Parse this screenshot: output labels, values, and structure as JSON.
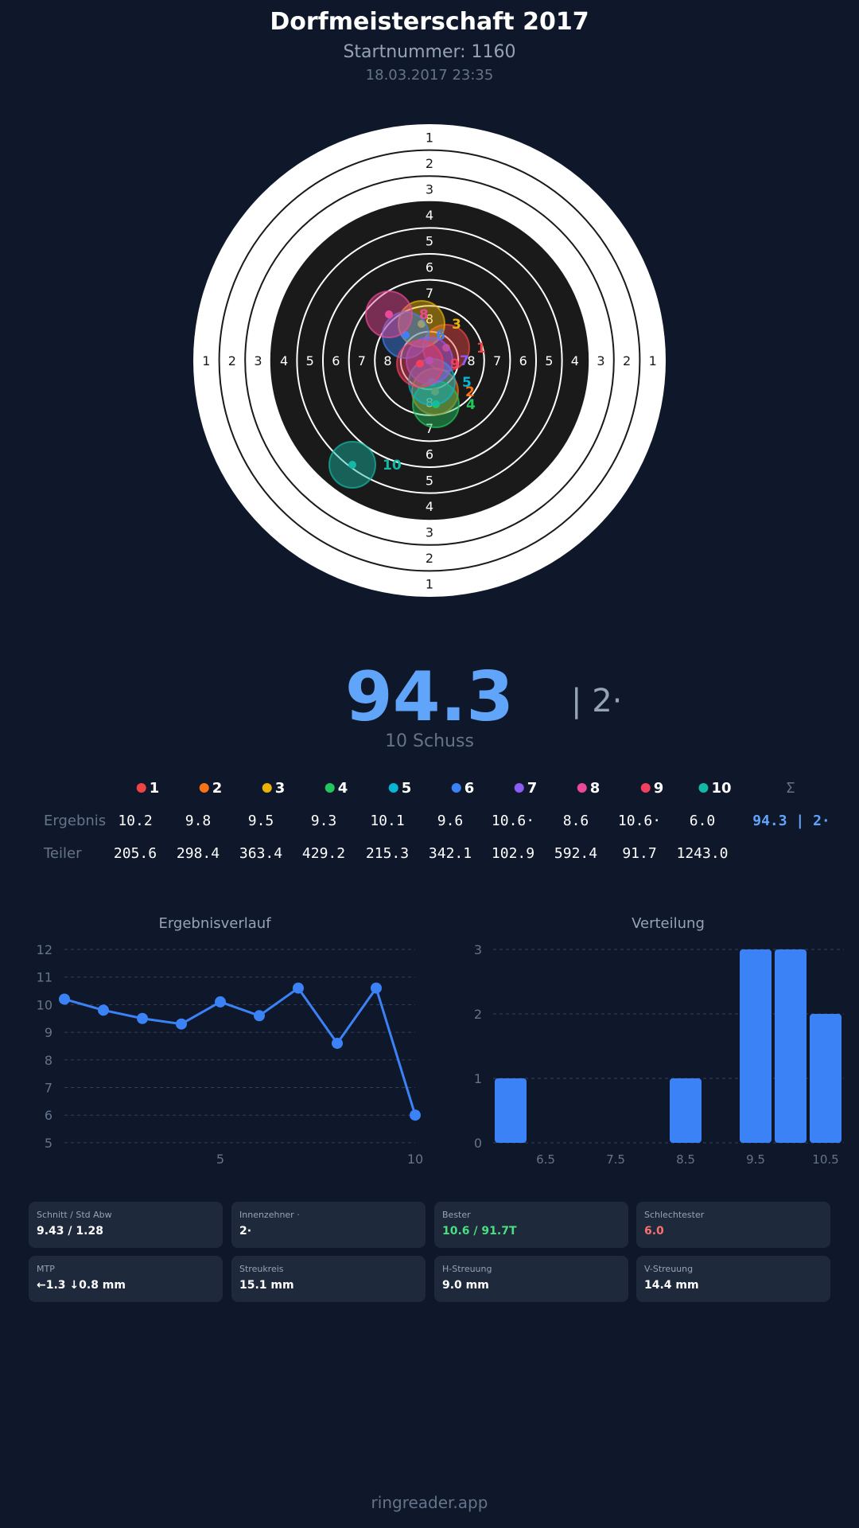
{
  "header": {
    "title": "Dorfmeisterschaft 2017",
    "start_number": "Startnummer: 1160",
    "datetime": "18.03.2017 23:35"
  },
  "target": {
    "ring_labels": [
      "1",
      "2",
      "3",
      "4",
      "5",
      "6",
      "7",
      "8"
    ]
  },
  "shots": [
    {
      "n": "1",
      "color": "#ef4444",
      "result": "10.2",
      "teiler": "205.6"
    },
    {
      "n": "2",
      "color": "#f97316",
      "result": "9.8",
      "teiler": "298.4"
    },
    {
      "n": "3",
      "color": "#eab308",
      "result": "9.5",
      "teiler": "363.4"
    },
    {
      "n": "4",
      "color": "#22c55e",
      "result": "9.3",
      "teiler": "429.2"
    },
    {
      "n": "5",
      "color": "#06b6d4",
      "result": "10.1",
      "teiler": "215.3"
    },
    {
      "n": "6",
      "color": "#3b82f6",
      "result": "9.6",
      "teiler": "342.1"
    },
    {
      "n": "7",
      "color": "#8b5cf6",
      "result": "10.6·",
      "teiler": "102.9"
    },
    {
      "n": "8",
      "color": "#ec4899",
      "result": "8.6",
      "teiler": "592.4"
    },
    {
      "n": "9",
      "color": "#f43f5e",
      "result": "10.6·",
      "teiler": "91.7"
    },
    {
      "n": "10",
      "color": "#14b8a6",
      "result": "6.0",
      "teiler": "1243.0"
    }
  ],
  "summary": {
    "total": "94.3",
    "inner_tens": "| 2·",
    "shot_count": "10 Schuss",
    "sigma": "Σ",
    "row_total": "94.3 | 2·",
    "row_label_result": "Ergebnis",
    "row_label_teiler": "Teiler"
  },
  "chart_data": [
    {
      "type": "line",
      "title": "Ergebnisverlauf",
      "x": [
        1,
        2,
        3,
        4,
        5,
        6,
        7,
        8,
        9,
        10
      ],
      "values": [
        10.2,
        9.8,
        9.5,
        9.3,
        10.1,
        9.6,
        10.6,
        8.6,
        10.6,
        6.0
      ],
      "ylim": [
        5,
        12
      ],
      "yticks": [
        "5",
        "6",
        "7",
        "8",
        "9",
        "10",
        "11",
        "12"
      ],
      "xticks": [
        "5",
        "10"
      ],
      "grid": true,
      "color": "#3b82f6"
    },
    {
      "type": "bar",
      "title": "Verteilung",
      "categories": [
        6.0,
        8.5,
        9.5,
        10.0,
        10.5
      ],
      "values": [
        1,
        1,
        3,
        3,
        2
      ],
      "ylim": [
        0,
        3
      ],
      "xlim": [
        5.75,
        10.75
      ],
      "yticks": [
        "0",
        "1",
        "2",
        "3"
      ],
      "xticks": [
        "6.5",
        "7.5",
        "8.5",
        "9.5",
        "10.5"
      ],
      "grid": true,
      "color": "#3b82f6"
    }
  ],
  "stats": [
    {
      "label": "Schnitt / Std Abw",
      "value": "9.43 / 1.28",
      "color": "#ffffff"
    },
    {
      "label": "Innenzehner ·",
      "value": "2·",
      "color": "#ffffff"
    },
    {
      "label": "Bester",
      "value": "10.6 / 91.7T",
      "color": "#4ade80"
    },
    {
      "label": "Schlechtester",
      "value": "6.0",
      "color": "#f87171"
    },
    {
      "label": "MTP",
      "value": "←1.3 ↓0.8 mm",
      "color": "#ffffff"
    },
    {
      "label": "Streukreis",
      "value": "15.1 mm",
      "color": "#ffffff"
    },
    {
      "label": "H-Streuung",
      "value": "9.0 mm",
      "color": "#ffffff"
    },
    {
      "label": "V-Streuung",
      "value": "14.4 mm",
      "color": "#ffffff"
    }
  ],
  "footer": "ringreader.app"
}
